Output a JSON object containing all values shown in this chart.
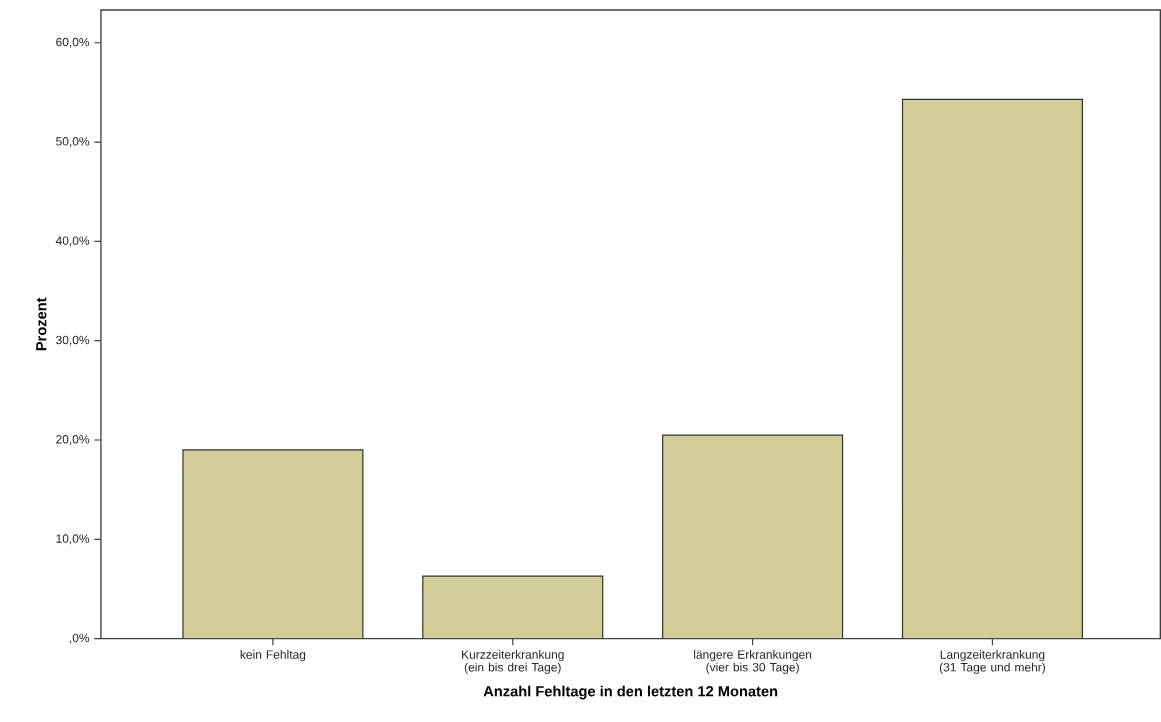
{
  "chart_data": {
    "type": "bar",
    "xlabel": "Anzahl Fehltage in den letzten 12 Monaten",
    "ylabel": "Prozent",
    "categories": [
      "kein Fehltag",
      "Kurzzeiterkrankung (ein bis drei Tage)",
      "längere Erkrankungen (vier bis 30 Tage)",
      "Langzeiterkrankung (31 Tage und mehr)"
    ],
    "values": [
      19.0,
      6.3,
      20.5,
      54.3
    ],
    "color": "#d3cd97",
    "ylim": [
      0,
      63.3
    ],
    "yticks": [
      {
        "value": 0,
        "label": ",0%"
      },
      {
        "value": 10,
        "label": "10,0%"
      },
      {
        "value": 20,
        "label": "20,0%"
      },
      {
        "value": 30,
        "label": "30,0%"
      },
      {
        "value": 40,
        "label": "40,0%"
      },
      {
        "value": 50,
        "label": "50,0%"
      },
      {
        "value": 60,
        "label": "60,0%"
      }
    ],
    "grid": false
  }
}
